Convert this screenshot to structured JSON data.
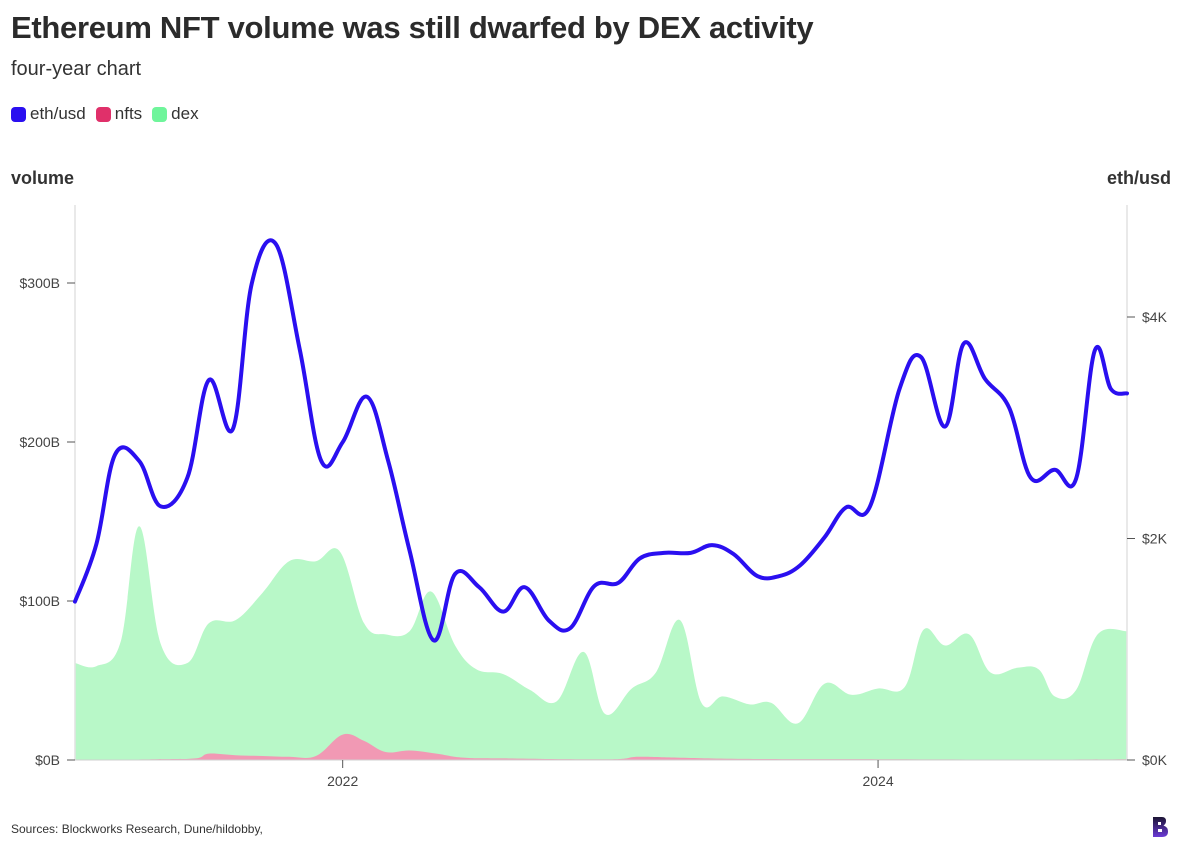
{
  "header": {
    "title": "Ethereum NFT volume was still dwarfed by DEX activity",
    "subtitle": "four-year chart"
  },
  "legend": [
    {
      "label": "eth/usd",
      "color": "#2a0ff0"
    },
    {
      "label": "nfts",
      "color": "#e0306a"
    },
    {
      "label": "dex",
      "color": "#6ff59b"
    }
  ],
  "axes": {
    "left_title": "volume",
    "right_title": "eth/usd"
  },
  "footer": {
    "source": "Sources: Blockworks Research, Dune/hildobby,"
  },
  "colors": {
    "eth_line": "#2a0ff0",
    "nfts_fill": "#f199b4",
    "dex_fill": "#b8f8c8",
    "grid": "#e2e2e2",
    "axis": "#555555"
  },
  "chart_data": {
    "type": "area+line",
    "title": "Ethereum NFT volume was still dwarfed by DEX activity",
    "subtitle": "four-year chart",
    "x_unit": "date (year)",
    "x_range": [
      2021.0,
      2024.93
    ],
    "x_ticks": [
      {
        "value": 2022,
        "label": "2022"
      },
      {
        "value": 2024,
        "label": "2024"
      }
    ],
    "y_left": {
      "label": "volume",
      "range": [
        0,
        350
      ],
      "unit": "$B",
      "ticks": [
        {
          "value": 0,
          "label": "$0B"
        },
        {
          "value": 100,
          "label": "$100B"
        },
        {
          "value": 200,
          "label": "$200B"
        },
        {
          "value": 300,
          "label": "$300B"
        }
      ]
    },
    "y_right": {
      "label": "eth/usd",
      "range": [
        0,
        5000
      ],
      "unit": "$",
      "ticks": [
        {
          "value": 0,
          "label": "$0K"
        },
        {
          "value": 2000,
          "label": "$2K"
        },
        {
          "value": 4000,
          "label": "$4K"
        }
      ]
    },
    "grid": "vertical axis lines only",
    "legend_position": "top-left",
    "series": [
      {
        "name": "dex",
        "type": "area",
        "axis": "left",
        "points": [
          [
            2021.0,
            61
          ],
          [
            2021.08,
            59
          ],
          [
            2021.17,
            74
          ],
          [
            2021.24,
            147
          ],
          [
            2021.32,
            73
          ],
          [
            2021.42,
            61
          ],
          [
            2021.5,
            86
          ],
          [
            2021.6,
            88
          ],
          [
            2021.7,
            105
          ],
          [
            2021.8,
            125
          ],
          [
            2021.9,
            125
          ],
          [
            2021.99,
            131
          ],
          [
            2022.08,
            86
          ],
          [
            2022.16,
            79
          ],
          [
            2022.25,
            81
          ],
          [
            2022.33,
            106
          ],
          [
            2022.42,
            72
          ],
          [
            2022.5,
            57
          ],
          [
            2022.6,
            54
          ],
          [
            2022.7,
            44
          ],
          [
            2022.8,
            37
          ],
          [
            2022.9,
            68
          ],
          [
            2022.98,
            29
          ],
          [
            2023.08,
            45
          ],
          [
            2023.17,
            55
          ],
          [
            2023.26,
            88
          ],
          [
            2023.34,
            36
          ],
          [
            2023.42,
            40
          ],
          [
            2023.52,
            35
          ],
          [
            2023.6,
            36
          ],
          [
            2023.7,
            23
          ],
          [
            2023.8,
            48
          ],
          [
            2023.9,
            41
          ],
          [
            2024.0,
            45
          ],
          [
            2024.1,
            46
          ],
          [
            2024.17,
            82
          ],
          [
            2024.25,
            72
          ],
          [
            2024.34,
            79
          ],
          [
            2024.42,
            55
          ],
          [
            2024.52,
            58
          ],
          [
            2024.6,
            57
          ],
          [
            2024.66,
            40
          ],
          [
            2024.74,
            44
          ],
          [
            2024.82,
            79
          ],
          [
            2024.93,
            81
          ]
        ]
      },
      {
        "name": "nfts",
        "type": "area",
        "axis": "left",
        "points": [
          [
            2021.0,
            0
          ],
          [
            2021.3,
            0.5
          ],
          [
            2021.45,
            1
          ],
          [
            2021.5,
            4
          ],
          [
            2021.6,
            3
          ],
          [
            2021.7,
            2.5
          ],
          [
            2021.8,
            2
          ],
          [
            2021.9,
            2.5
          ],
          [
            2022.0,
            16
          ],
          [
            2022.08,
            12
          ],
          [
            2022.16,
            5
          ],
          [
            2022.25,
            6
          ],
          [
            2022.35,
            4
          ],
          [
            2022.45,
            1.5
          ],
          [
            2022.6,
            1
          ],
          [
            2023.0,
            0.5
          ],
          [
            2023.1,
            2
          ],
          [
            2023.25,
            1.5
          ],
          [
            2023.5,
            0.7
          ],
          [
            2024.0,
            0.5
          ],
          [
            2024.5,
            0.3
          ],
          [
            2024.93,
            0.5
          ]
        ]
      },
      {
        "name": "eth/usd",
        "type": "line",
        "axis": "right",
        "points": [
          [
            2021.0,
            1430
          ],
          [
            2021.08,
            1950
          ],
          [
            2021.15,
            2760
          ],
          [
            2021.24,
            2700
          ],
          [
            2021.32,
            2290
          ],
          [
            2021.42,
            2550
          ],
          [
            2021.5,
            3430
          ],
          [
            2021.59,
            2990
          ],
          [
            2021.66,
            4300
          ],
          [
            2021.75,
            4660
          ],
          [
            2021.84,
            3700
          ],
          [
            2021.92,
            2700
          ],
          [
            2022.0,
            2870
          ],
          [
            2022.09,
            3280
          ],
          [
            2022.17,
            2700
          ],
          [
            2022.25,
            1890
          ],
          [
            2022.34,
            1080
          ],
          [
            2022.42,
            1680
          ],
          [
            2022.51,
            1560
          ],
          [
            2022.6,
            1340
          ],
          [
            2022.68,
            1560
          ],
          [
            2022.77,
            1260
          ],
          [
            2022.85,
            1190
          ],
          [
            2022.94,
            1570
          ],
          [
            2023.03,
            1600
          ],
          [
            2023.11,
            1820
          ],
          [
            2023.2,
            1870
          ],
          [
            2023.3,
            1870
          ],
          [
            2023.38,
            1940
          ],
          [
            2023.46,
            1860
          ],
          [
            2023.55,
            1660
          ],
          [
            2023.63,
            1660
          ],
          [
            2023.71,
            1760
          ],
          [
            2023.8,
            2010
          ],
          [
            2023.88,
            2280
          ],
          [
            2023.97,
            2290
          ],
          [
            2024.08,
            3350
          ],
          [
            2024.16,
            3640
          ],
          [
            2024.25,
            3010
          ],
          [
            2024.32,
            3760
          ],
          [
            2024.4,
            3440
          ],
          [
            2024.49,
            3180
          ],
          [
            2024.57,
            2550
          ],
          [
            2024.66,
            2620
          ],
          [
            2024.74,
            2540
          ],
          [
            2024.81,
            3700
          ],
          [
            2024.87,
            3350
          ],
          [
            2024.93,
            3310
          ]
        ]
      }
    ]
  }
}
